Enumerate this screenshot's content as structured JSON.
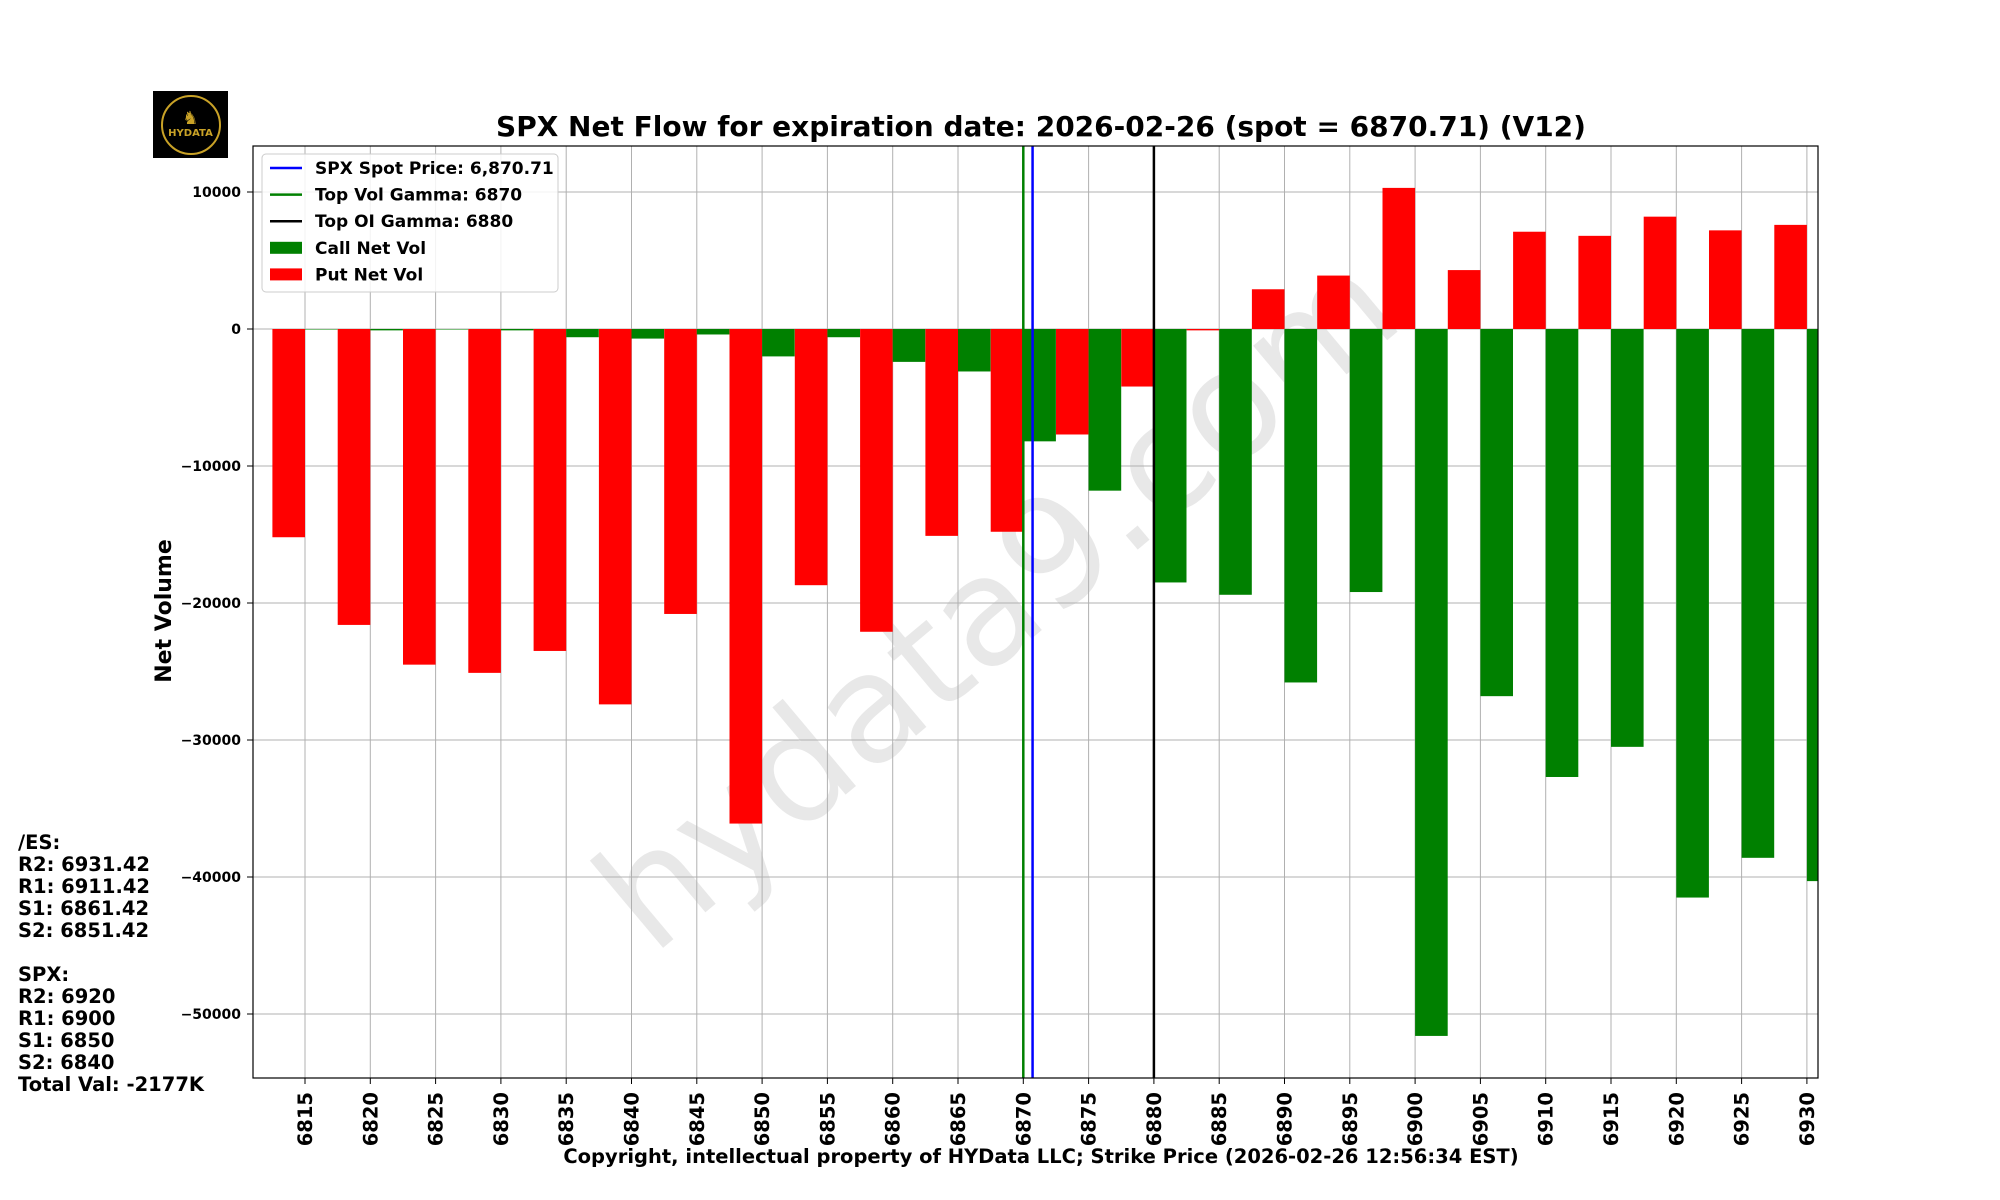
{
  "chart_data": {
    "type": "bar",
    "title": "SPX Net Flow for expiration date: 2026-02-26 (spot = 6870.71) (V12)",
    "xlabel": "Copyright, intellectual property of HYData LLC; Strike Price (2026-02-26 12:56:34 EST)",
    "ylabel": "Net Volume",
    "ylim": [
      -55000,
      13000
    ],
    "yticks": [
      10000,
      0,
      -10000,
      -20000,
      -30000,
      -40000,
      -50000
    ],
    "ytick_labels": [
      "10000",
      "0",
      "−10000",
      "−20000",
      "−30000",
      "−40000",
      "−50000"
    ],
    "categories": [
      "6815",
      "6820",
      "6825",
      "6830",
      "6835",
      "6840",
      "6845",
      "6850",
      "6855",
      "6860",
      "6865",
      "6870",
      "6875",
      "6880",
      "6885",
      "6890",
      "6895",
      "6900",
      "6905",
      "6910",
      "6915",
      "6920",
      "6925",
      "6930"
    ],
    "series": [
      {
        "name": "Put Net Vol",
        "color": "#ff0000",
        "values": [
          -15200,
          -21600,
          -24500,
          -25100,
          -23500,
          -27400,
          -20800,
          -36100,
          -18700,
          -22100,
          -15100,
          -14800,
          -7700,
          -4200,
          -100,
          2900,
          3900,
          10300,
          4300,
          7100,
          6800,
          8200,
          7200,
          7600
        ]
      },
      {
        "name": "Call Net Vol",
        "color": "#008000",
        "values": [
          0,
          -100,
          0,
          -100,
          -600,
          -700,
          -400,
          -2000,
          -600,
          -2400,
          -3100,
          -8200,
          -11800,
          -18500,
          -19400,
          -25800,
          -19200,
          -51600,
          -26800,
          -32700,
          -30500,
          -41500,
          -38600,
          -40300
        ]
      }
    ],
    "vlines": [
      {
        "name": "SPX Spot Price: 6,870.71",
        "x": 6870.71,
        "color": "#0000ff"
      },
      {
        "name": "Top Vol Gamma: 6870",
        "x": 6870,
        "color": "#008000"
      },
      {
        "name": "Top OI Gamma: 6880",
        "x": 6880,
        "color": "#000000"
      }
    ],
    "legend": [
      "SPX Spot Price: 6,870.71",
      "Top Vol Gamma: 6870",
      "Top OI Gamma: 6880",
      "Call Net Vol",
      "Put Net Vol"
    ],
    "legend_position": "top-left",
    "grid": true,
    "watermark": "hydata9.com"
  },
  "side_panel": {
    "es_header": "/ES:",
    "es_levels": [
      "R2: 6931.42",
      "R1: 6911.42",
      "S1: 6861.42",
      "S2: 6851.42"
    ],
    "spx_header": "SPX:",
    "spx_levels": [
      "R2: 6920",
      "R1: 6900",
      "S1: 6850",
      "S2: 6840"
    ],
    "total": "Total Val: -2177K"
  },
  "logo": {
    "text": "HYDATA",
    "icon": "horse-icon"
  }
}
